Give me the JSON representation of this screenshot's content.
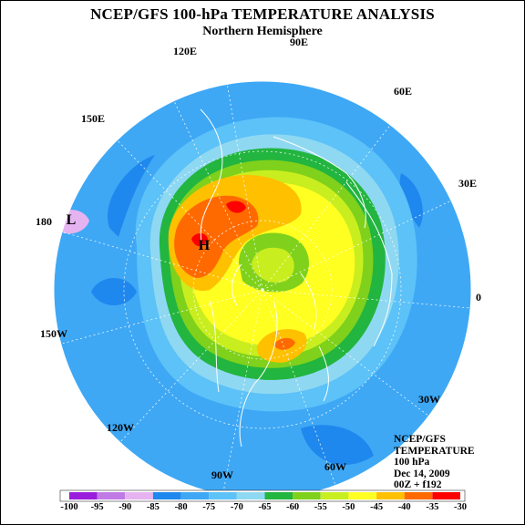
{
  "title": "NCEP/GFS 100-hPa TEMPERATURE ANALYSIS",
  "subtitle": "Northern Hemisphere",
  "longitude_labels": {
    "lon_90e": "90E",
    "lon_60e": "60E",
    "lon_30e": "30E",
    "lon_0": "0",
    "lon_30w": "30W",
    "lon_60w": "60W",
    "lon_90w": "90W",
    "lon_120w": "120W",
    "lon_150w": "150W",
    "lon_180": "180",
    "lon_150e": "150E",
    "lon_120e": "120E"
  },
  "markers": {
    "high": "H",
    "low": "L"
  },
  "info": {
    "line1": "NCEP/GFS",
    "line2": "TEMPERATURE",
    "line3": "100 hPa",
    "line4": "Dec 14, 2009",
    "line5": "00Z + f192"
  },
  "colorbar": {
    "ticks": [
      "-100",
      "-95",
      "-90",
      "-85",
      "-80",
      "-75",
      "-70",
      "-65",
      "-60",
      "-55",
      "-50",
      "-45",
      "-40",
      "-35",
      "-30"
    ],
    "colors": [
      "#9b1ddc",
      "#c07ae6",
      "#e5b3f0",
      "#1f88ee",
      "#3ea8f5",
      "#5cc2f8",
      "#8fd8f2",
      "#22b53f",
      "#7fd11b",
      "#c9ee1f",
      "#ffff22",
      "#ffc000",
      "#ff6a00",
      "#ff0000",
      "#6b3e26",
      "#7a7a7a"
    ]
  },
  "palette": {
    "outer": "#3ea8f5",
    "deep_blue": "#1f88ee",
    "light_blue": "#5cc2f8",
    "cyan": "#8fd8f2",
    "green": "#22b53f",
    "lime": "#7fd11b",
    "yellow_green": "#c9ee1f",
    "yellow": "#ffff22",
    "orange": "#ffc000",
    "dark_orange": "#ff6a00",
    "red": "#ff0000",
    "violet": "#e5b3f0"
  }
}
